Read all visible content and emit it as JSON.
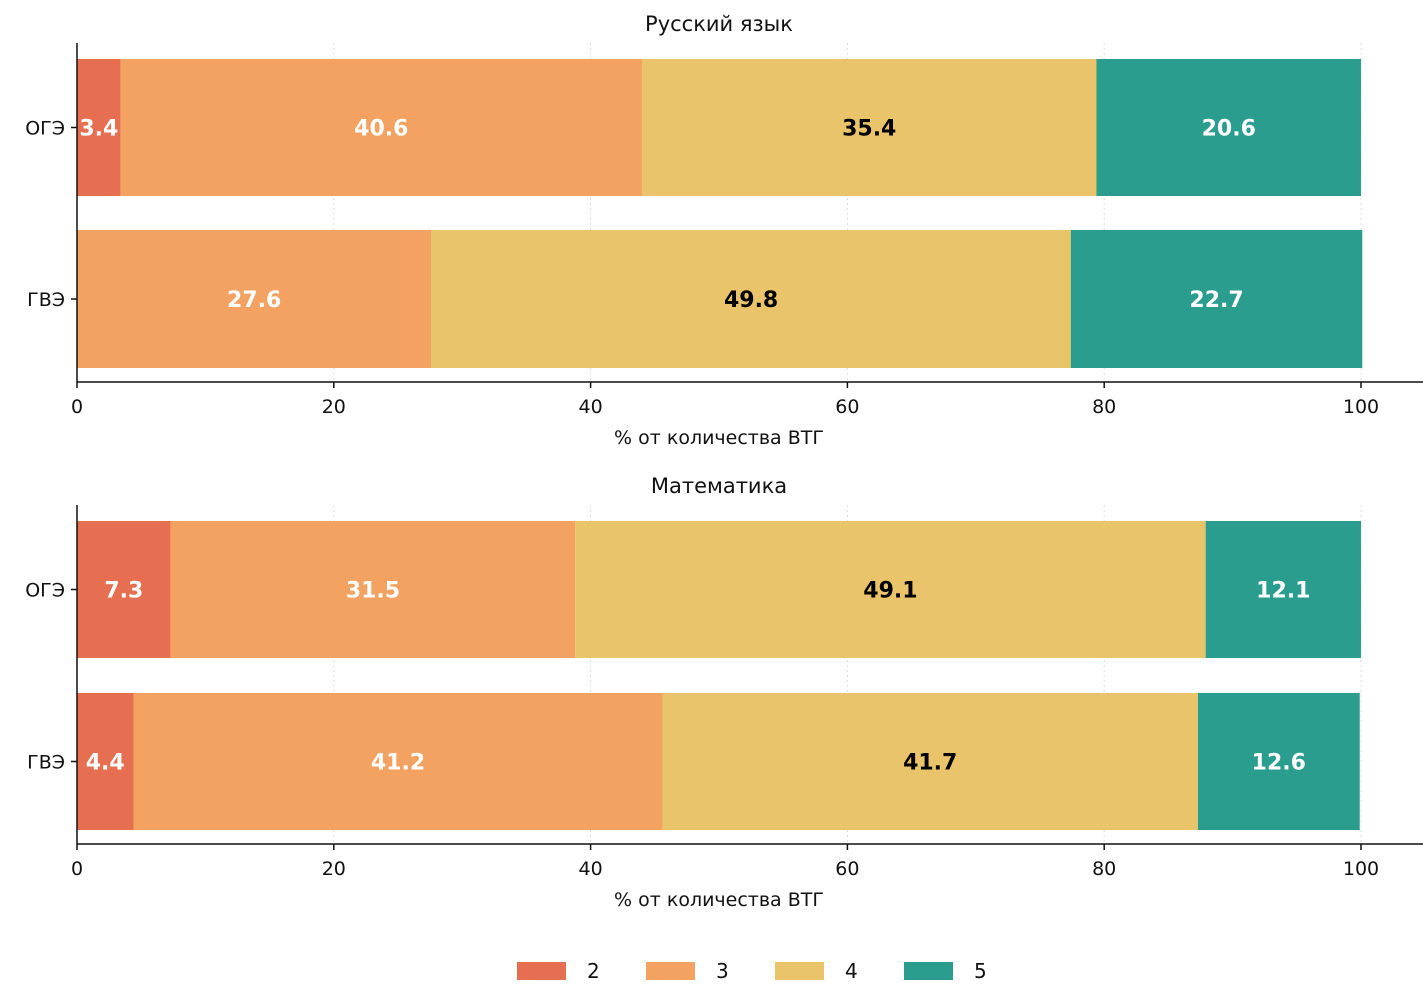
{
  "chart_data": [
    {
      "type": "bar",
      "orientation": "horizontal",
      "stacked": true,
      "title": "Русский язык",
      "xlabel": "% от количества ВТГ",
      "ylabel": "",
      "xlim": [
        0,
        100
      ],
      "xticks": [
        "0",
        "20",
        "40",
        "60",
        "80",
        "100"
      ],
      "categories": [
        "ОГЭ",
        "ГВЭ"
      ],
      "series": [
        {
          "name": "2",
          "color": "#e76f51",
          "values": [
            3.4,
            0
          ]
        },
        {
          "name": "3",
          "color": "#f4a261",
          "values": [
            40.6,
            27.6
          ]
        },
        {
          "name": "4",
          "color": "#e9c46a",
          "values": [
            35.4,
            49.8
          ]
        },
        {
          "name": "5",
          "color": "#2a9d8f",
          "values": [
            20.6,
            22.7
          ]
        }
      ],
      "labels": [
        [
          "3.4",
          "40.6",
          "35.4",
          "20.6"
        ],
        [
          "",
          "27.6",
          "49.8",
          "22.7"
        ]
      ],
      "grid": "vertical dotted"
    },
    {
      "type": "bar",
      "orientation": "horizontal",
      "stacked": true,
      "title": "Математика",
      "xlabel": "% от количества ВТГ",
      "ylabel": "",
      "xlim": [
        0,
        100
      ],
      "xticks": [
        "0",
        "20",
        "40",
        "60",
        "80",
        "100"
      ],
      "categories": [
        "ОГЭ",
        "ГВЭ"
      ],
      "series": [
        {
          "name": "2",
          "color": "#e76f51",
          "values": [
            7.3,
            4.4
          ]
        },
        {
          "name": "3",
          "color": "#f4a261",
          "values": [
            31.5,
            41.2
          ]
        },
        {
          "name": "4",
          "color": "#e9c46a",
          "values": [
            49.1,
            41.7
          ]
        },
        {
          "name": "5",
          "color": "#2a9d8f",
          "values": [
            12.1,
            12.6
          ]
        }
      ],
      "labels": [
        [
          "7.3",
          "31.5",
          "49.1",
          "12.1"
        ],
        [
          "4.4",
          "41.2",
          "41.7",
          "12.6"
        ]
      ],
      "grid": "vertical dotted"
    }
  ],
  "legend": {
    "placement": "bottom-center",
    "items": [
      {
        "label": "2",
        "color": "#e76f51"
      },
      {
        "label": "3",
        "color": "#f4a261"
      },
      {
        "label": "4",
        "color": "#e9c46a"
      },
      {
        "label": "5",
        "color": "#2a9d8f"
      }
    ]
  },
  "label_colors": {
    "light": "#ffffff",
    "dark": "#000000"
  }
}
